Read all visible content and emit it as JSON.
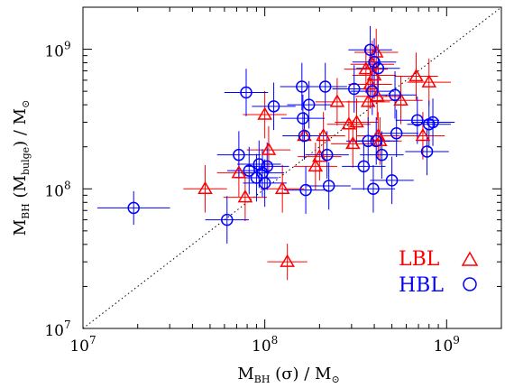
{
  "chart_data": {
    "type": "scatter",
    "x_scale": "log",
    "y_scale": "log",
    "xlim": [
      10000000,
      2000000000
    ],
    "ylim": [
      10000000,
      2000000000
    ],
    "x_ticks": [
      {
        "value": 10000000,
        "base": "10",
        "exp": "7"
      },
      {
        "value": 100000000,
        "base": "10",
        "exp": "8"
      },
      {
        "value": 1000000000,
        "base": "10",
        "exp": "9"
      }
    ],
    "y_ticks": [
      {
        "value": 10000000,
        "base": "10",
        "exp": "7"
      },
      {
        "value": 100000000,
        "base": "10",
        "exp": "8"
      },
      {
        "value": 1000000000,
        "base": "10",
        "exp": "9"
      }
    ],
    "xlabel": {
      "main": "M",
      "sub": "BH",
      "rest": " (σ) / M",
      "sym": "⊙"
    },
    "ylabel": {
      "main": "M",
      "sub": "BH",
      "paren_open": " (M",
      "sub2": "bulge",
      "rest": ") / M",
      "sym": "⊙"
    },
    "reference_line": "one-to-one (dotted)",
    "grid": false,
    "legend_position": "bottom-right",
    "series": [
      {
        "name": "LBL",
        "color": "#ff0000",
        "marker": "triangle",
        "symbol": "△",
        "points": [
          {
            "x": 47000000,
            "y": 100000000,
            "xerr": 0.12,
            "yerr": 0.17
          },
          {
            "x": 72000000,
            "y": 130000000,
            "xerr": 0.12,
            "yerr": 0.17
          },
          {
            "x": 78000000,
            "y": 87000000,
            "xerr": 0.12,
            "yerr": 0.17
          },
          {
            "x": 100000000,
            "y": 340000000,
            "xerr": 0.12,
            "yerr": 0.17
          },
          {
            "x": 105000000,
            "y": 190000000,
            "xerr": 0.12,
            "yerr": 0.17
          },
          {
            "x": 125000000,
            "y": 100000000,
            "xerr": 0.12,
            "yerr": 0.17
          },
          {
            "x": 133000000,
            "y": 30000000,
            "xerr": 0.11,
            "yerr": 0.13
          },
          {
            "x": 165000000,
            "y": 240000000,
            "xerr": 0.12,
            "yerr": 0.17
          },
          {
            "x": 190000000,
            "y": 145000000,
            "xerr": 0.12,
            "yerr": 0.17
          },
          {
            "x": 200000000,
            "y": 170000000,
            "xerr": 0.12,
            "yerr": 0.17
          },
          {
            "x": 210000000,
            "y": 240000000,
            "xerr": 0.12,
            "yerr": 0.17
          },
          {
            "x": 250000000,
            "y": 420000000,
            "xerr": 0.12,
            "yerr": 0.17
          },
          {
            "x": 290000000,
            "y": 290000000,
            "xerr": 0.12,
            "yerr": 0.17
          },
          {
            "x": 305000000,
            "y": 210000000,
            "xerr": 0.12,
            "yerr": 0.17
          },
          {
            "x": 320000000,
            "y": 300000000,
            "xerr": 0.12,
            "yerr": 0.17
          },
          {
            "x": 360000000,
            "y": 720000000,
            "xerr": 0.12,
            "yerr": 0.17
          },
          {
            "x": 370000000,
            "y": 420000000,
            "xerr": 0.12,
            "yerr": 0.17
          },
          {
            "x": 380000000,
            "y": 560000000,
            "xerr": 0.12,
            "yerr": 0.17
          },
          {
            "x": 390000000,
            "y": 780000000,
            "xerr": 0.12,
            "yerr": 0.17
          },
          {
            "x": 400000000,
            "y": 650000000,
            "xerr": 0.12,
            "yerr": 0.17
          },
          {
            "x": 410000000,
            "y": 950000000,
            "xerr": 0.12,
            "yerr": 0.17
          },
          {
            "x": 415000000,
            "y": 460000000,
            "xerr": 0.12,
            "yerr": 0.17
          },
          {
            "x": 420000000,
            "y": 240000000,
            "xerr": 0.12,
            "yerr": 0.17
          },
          {
            "x": 430000000,
            "y": 220000000,
            "xerr": 0.12,
            "yerr": 0.17
          },
          {
            "x": 560000000,
            "y": 430000000,
            "xerr": 0.12,
            "yerr": 0.17
          },
          {
            "x": 680000000,
            "y": 640000000,
            "xerr": 0.12,
            "yerr": 0.17
          },
          {
            "x": 740000000,
            "y": 240000000,
            "xerr": 0.12,
            "yerr": 0.17
          },
          {
            "x": 800000000,
            "y": 580000000,
            "xerr": 0.12,
            "yerr": 0.17
          }
        ]
      },
      {
        "name": "HBL",
        "color": "#0000ff",
        "marker": "circle",
        "symbol": "○",
        "points": [
          {
            "x": 19000000,
            "y": 73000000,
            "xerr": 0.2,
            "yerr": 0.12
          },
          {
            "x": 62000000,
            "y": 60000000,
            "xerr": 0.12,
            "yerr": 0.17
          },
          {
            "x": 72000000,
            "y": 175000000,
            "xerr": 0.12,
            "yerr": 0.17
          },
          {
            "x": 79000000,
            "y": 490000000,
            "xerr": 0.12,
            "yerr": 0.17
          },
          {
            "x": 82000000,
            "y": 135000000,
            "xerr": 0.12,
            "yerr": 0.17
          },
          {
            "x": 90000000,
            "y": 120000000,
            "xerr": 0.12,
            "yerr": 0.17
          },
          {
            "x": 93000000,
            "y": 150000000,
            "xerr": 0.12,
            "yerr": 0.17
          },
          {
            "x": 97000000,
            "y": 130000000,
            "xerr": 0.12,
            "yerr": 0.17
          },
          {
            "x": 100000000,
            "y": 110000000,
            "xerr": 0.12,
            "yerr": 0.17
          },
          {
            "x": 103000000,
            "y": 145000000,
            "xerr": 0.12,
            "yerr": 0.17
          },
          {
            "x": 112000000,
            "y": 390000000,
            "xerr": 0.12,
            "yerr": 0.17
          },
          {
            "x": 160000000,
            "y": 540000000,
            "xerr": 0.12,
            "yerr": 0.17
          },
          {
            "x": 162000000,
            "y": 320000000,
            "xerr": 0.12,
            "yerr": 0.17
          },
          {
            "x": 165000000,
            "y": 240000000,
            "xerr": 0.12,
            "yerr": 0.17
          },
          {
            "x": 168000000,
            "y": 98000000,
            "xerr": 0.12,
            "yerr": 0.17
          },
          {
            "x": 175000000,
            "y": 400000000,
            "xerr": 0.12,
            "yerr": 0.17
          },
          {
            "x": 215000000,
            "y": 540000000,
            "xerr": 0.12,
            "yerr": 0.17
          },
          {
            "x": 220000000,
            "y": 175000000,
            "xerr": 0.12,
            "yerr": 0.17
          },
          {
            "x": 225000000,
            "y": 105000000,
            "xerr": 0.12,
            "yerr": 0.17
          },
          {
            "x": 310000000,
            "y": 520000000,
            "xerr": 0.12,
            "yerr": 0.17
          },
          {
            "x": 350000000,
            "y": 145000000,
            "xerr": 0.12,
            "yerr": 0.17
          },
          {
            "x": 370000000,
            "y": 220000000,
            "xerr": 0.12,
            "yerr": 0.17
          },
          {
            "x": 380000000,
            "y": 990000000,
            "xerr": 0.12,
            "yerr": 0.17
          },
          {
            "x": 390000000,
            "y": 500000000,
            "xerr": 0.12,
            "yerr": 0.17
          },
          {
            "x": 395000000,
            "y": 100000000,
            "xerr": 0.12,
            "yerr": 0.17
          },
          {
            "x": 400000000,
            "y": 810000000,
            "xerr": 0.12,
            "yerr": 0.17
          },
          {
            "x": 410000000,
            "y": 220000000,
            "xerr": 0.12,
            "yerr": 0.17
          },
          {
            "x": 420000000,
            "y": 730000000,
            "xerr": 0.12,
            "yerr": 0.17
          },
          {
            "x": 440000000,
            "y": 175000000,
            "xerr": 0.12,
            "yerr": 0.17
          },
          {
            "x": 500000000,
            "y": 115000000,
            "xerr": 0.12,
            "yerr": 0.17
          },
          {
            "x": 520000000,
            "y": 470000000,
            "xerr": 0.12,
            "yerr": 0.17
          },
          {
            "x": 530000000,
            "y": 250000000,
            "xerr": 0.12,
            "yerr": 0.17
          },
          {
            "x": 690000000,
            "y": 310000000,
            "xerr": 0.12,
            "yerr": 0.17
          },
          {
            "x": 780000000,
            "y": 185000000,
            "xerr": 0.12,
            "yerr": 0.17
          },
          {
            "x": 800000000,
            "y": 290000000,
            "xerr": 0.12,
            "yerr": 0.17
          },
          {
            "x": 840000000,
            "y": 300000000,
            "xerr": 0.12,
            "yerr": 0.17
          }
        ]
      }
    ]
  }
}
